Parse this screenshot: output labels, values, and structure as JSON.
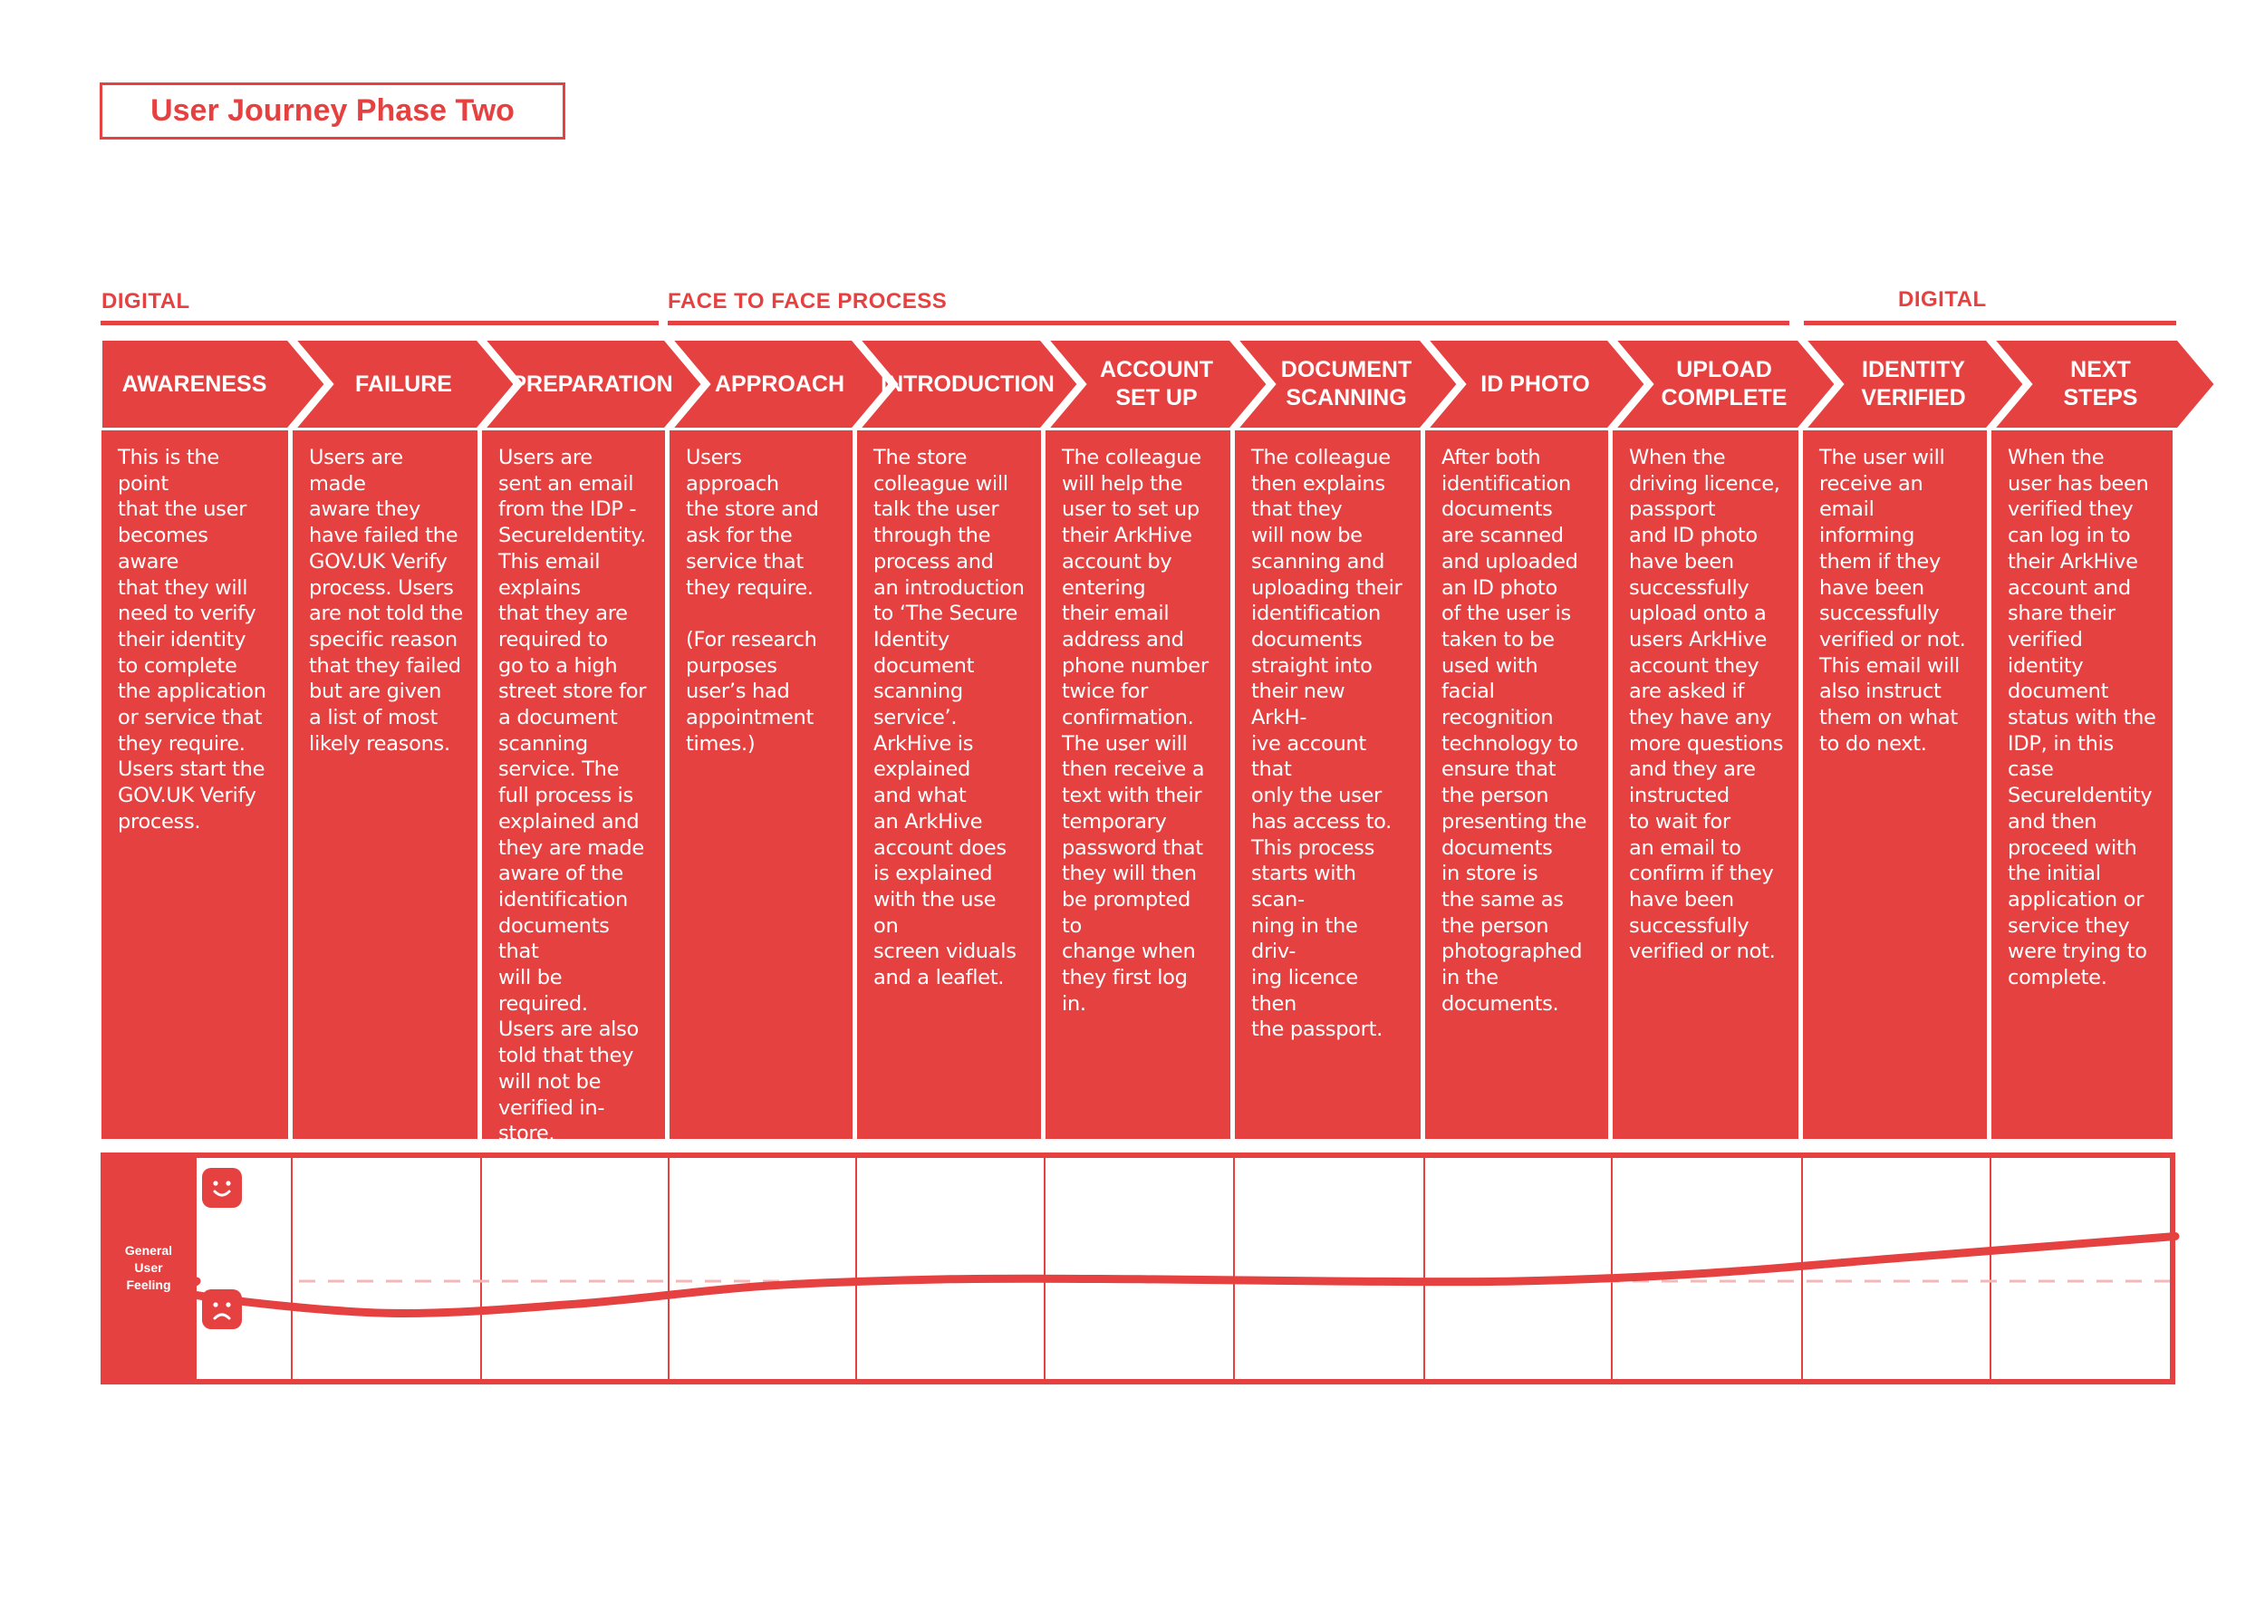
{
  "title": "User Journey Phase Two",
  "colors": {
    "accent": "#e64141",
    "text_on_accent": "#ffffff",
    "baseline": "#f4b8b8"
  },
  "sections": [
    {
      "label": "DIGITAL"
    },
    {
      "label": "FACE TO FACE PROCESS"
    },
    {
      "label": "DIGITAL"
    }
  ],
  "stages": [
    {
      "label": "AWARENESS",
      "description": "This is the point\nthat the user\nbecomes aware\nthat they will\nneed to verify\ntheir identity\nto complete\nthe application\nor service that\nthey require.\nUsers start the\nGOV.UK Verify\nprocess."
    },
    {
      "label": "FAILURE",
      "description": "Users are made\naware they\nhave failed the\nGOV.UK Verify\nprocess. Users\nare not told the\nspecific reason\nthat they failed\nbut are given\na list of most\nlikely reasons."
    },
    {
      "label": "PREPARATION",
      "description": "Users are\nsent an email\nfrom the IDP -\nSecureIdentity.\nThis email\nexplains\nthat they are\nrequired to\ngo to a high\nstreet store for\na document\nscanning\nservice. The\nfull process is\nexplained and\nthey are made\naware of the\nidentification\ndocuments that\nwill be required.\nUsers are also\ntold that they\nwill not be\nverified in-store."
    },
    {
      "label": "APPROACH",
      "description": "Users approach\nthe store and\nask for the\nservice that\nthey require.\n\n(For research\npurposes\nuser’s had\nappointment\ntimes.)"
    },
    {
      "label": "INTRODUCTION",
      "description": "The store\ncolleague will\ntalk the user\nthrough the\nprocess and\nan introduction\nto ‘The Secure\nIdentity\ndocument\nscanning\nservice’.\nArkHive is\nexplained\nand what\nan ArkHive\naccount does\nis explained\nwith the use on\nscreen viduals\nand a leaflet."
    },
    {
      "label": "ACCOUNT\nSET UP",
      "description": "The colleague\nwill help the\nuser to set up\ntheir ArkHive\naccount by\nentering\ntheir email\naddress and\nphone number\ntwice for\nconfirmation.\nThe user will\nthen receive a\ntext with their\ntemporary\npassword that\nthey will then\nbe prompted to\nchange when\nthey first log in."
    },
    {
      "label": "DOCUMENT\nSCANNING",
      "description": "The colleague\nthen explains\nthat they\nwill now be\nscanning and\nuploading their\nidentification\ndocuments\nstraight into\ntheir new ArkH-\nive account that\nonly the user\nhas access to.\nThis process\nstarts with scan-\nning in the driv-\ning licence then\nthe passport."
    },
    {
      "label": "ID PHOTO",
      "description": "After both\nidentification\ndocuments\nare scanned\nand uploaded\nan ID photo\nof the user is\ntaken to be\nused with facial\nrecognition\ntechnology to\nensure that\nthe person\npresenting the\ndocuments\nin store is\nthe same as\nthe person\nphotographed\nin the\ndocuments."
    },
    {
      "label": "UPLOAD\nCOMPLETE",
      "description": "When the\ndriving licence,\npassport\nand ID photo\nhave been\nsuccessfully\nupload onto a\nusers ArkHive\naccount they\nare asked if\nthey have any\nmore questions\nand they are\ninstructed\nto wait for\nan email to\nconfirm if they\nhave been\nsuccessfully\nverified or not."
    },
    {
      "label": "IDENTITY\nVERIFIED",
      "description": "The user will\nreceive an\nemail informing\nthem if they\nhave been\nsuccessfully\nverified or not.\nThis email will\nalso instruct\nthem on what\nto do next."
    },
    {
      "label": "NEXT STEPS",
      "description": "When the\nuser has been\nverified they\ncan log in to\ntheir ArkHive\naccount and\nshare their\nverified identity\ndocument\nstatus with the\nIDP, in this case\nSecureIdentity\nand then\nproceed with\nthe initial\napplication or\nservice they\nwere trying to\ncomplete."
    }
  ],
  "feeling": {
    "label": "General\nUser\nFeeling",
    "top_icon": "happy-face-icon",
    "bottom_icon": "sad-face-icon",
    "scale": "-1 = most negative, 0 = neutral, 1 = most positive",
    "values": [
      0.0,
      -0.14,
      -0.32,
      -0.23,
      -0.05,
      0.02,
      0.02,
      0.0,
      0.0,
      0.08,
      0.23,
      0.45
    ]
  }
}
